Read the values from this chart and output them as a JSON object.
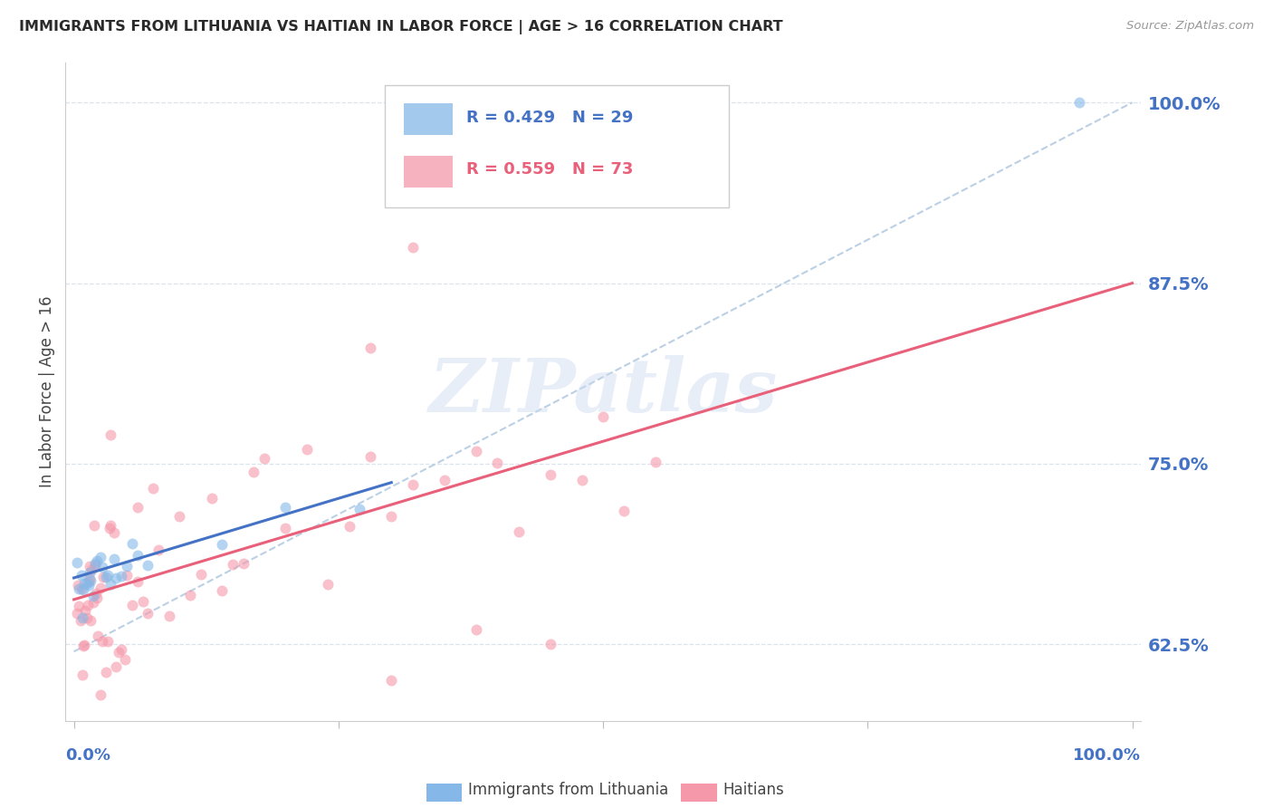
{
  "title": "IMMIGRANTS FROM LITHUANIA VS HAITIAN IN LABOR FORCE | AGE > 16 CORRELATION CHART",
  "source": "Source: ZipAtlas.com",
  "ylabel": "In Labor Force | Age > 16",
  "ytick_labels": [
    "62.5%",
    "75.0%",
    "87.5%",
    "100.0%"
  ],
  "ytick_values": [
    0.625,
    0.75,
    0.875,
    1.0
  ],
  "watermark": "ZIPatlas",
  "lithuania_color": "#85b8e8",
  "haitian_color": "#f598aa",
  "lithuania_line_color": "#4472c4",
  "haitian_line_color": "#e8607a",
  "dashed_line_color": "#b0c8e0",
  "scatter_alpha": 0.6,
  "marker_size": 75,
  "grid_color": "#d8e0ec",
  "title_color": "#2a2a2a",
  "axis_label_color": "#4472c4",
  "background_color": "#ffffff",
  "legend_r1": "R = 0.429   N = 29",
  "legend_r2": "R = 0.559   N = 73",
  "legend_label1": "Immigrants from Lithuania",
  "legend_label2": "Haitians"
}
